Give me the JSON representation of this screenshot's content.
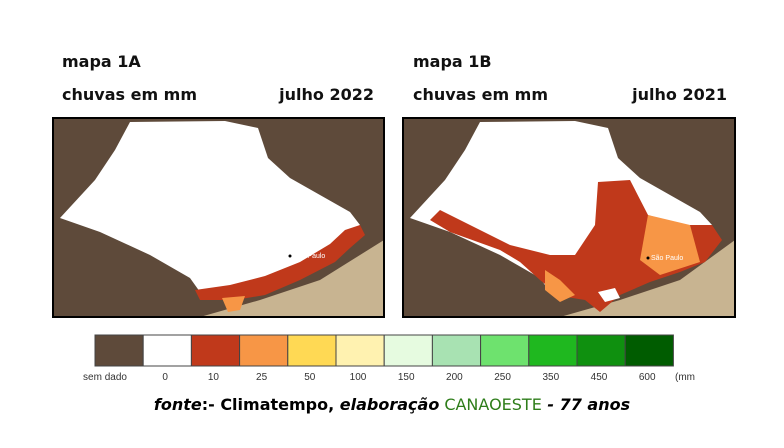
{
  "maps": [
    {
      "title": "mapa 1A",
      "subtitle": "chuvas em mm",
      "date": "julho 2022",
      "city": "São Paulo"
    },
    {
      "title": "mapa 1B",
      "subtitle": "chuvas em mm",
      "date": "julho 2021",
      "city": "São Paulo"
    }
  ],
  "legend": {
    "labels": [
      "sem dado",
      0,
      10,
      25,
      50,
      100,
      150,
      200,
      250,
      350,
      450,
      600
    ],
    "colors": [
      "#5e4a3a",
      "#ffffff",
      "#c0391b",
      "#f79646",
      "#ffd954",
      "#fff2b0",
      "#e6fbe0",
      "#a8e2b2",
      "#6ee26e",
      "#1fb81f",
      "#0f900f",
      "#005c00"
    ],
    "unit": "(mm"
  },
  "source": {
    "fonte": "fonte",
    "sep": ":- Climatempo, ",
    "elab": "elaboração",
    "org": "CANAOESTE",
    "tail": " - 77 anos"
  }
}
